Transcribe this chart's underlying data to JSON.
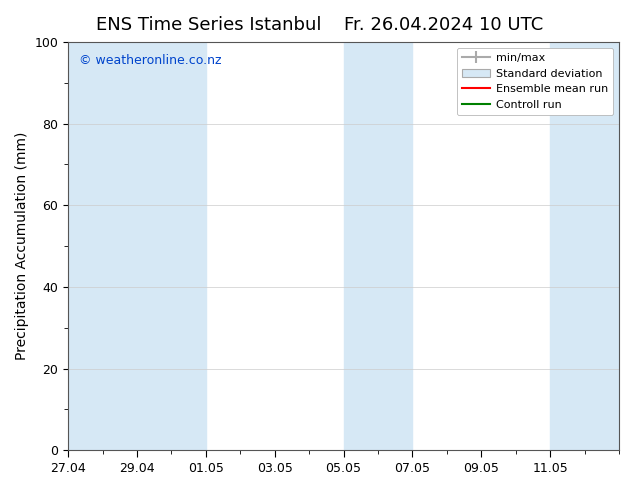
{
  "title_left": "ENS Time Series Istanbul",
  "title_right": "Fr. 26.04.2024 10 UTC",
  "ylabel": "Precipitation Accumulation (mm)",
  "ylim": [
    0,
    100
  ],
  "yticks": [
    0,
    20,
    40,
    60,
    80,
    100
  ],
  "x_tick_positions": [
    0,
    2,
    4,
    6,
    8,
    10,
    12,
    14
  ],
  "x_tick_labels": [
    "27.04",
    "29.04",
    "01.05",
    "03.05",
    "05.05",
    "07.05",
    "09.05",
    "11.05"
  ],
  "watermark": "© weatheronline.co.nz",
  "watermark_color": "#0044cc",
  "bg_color": "#ffffff",
  "shaded_band_color": "#d6e8f5",
  "legend_entries": [
    "min/max",
    "Standard deviation",
    "Ensemble mean run",
    "Controll run"
  ],
  "legend_colors": [
    "#aaaaaa",
    "#c8d8e8",
    "#ff0000",
    "#008000"
  ],
  "title_fontsize": 13,
  "axis_label_fontsize": 10,
  "tick_fontsize": 9,
  "shade_bands": [
    [
      0,
      2
    ],
    [
      2,
      4
    ],
    [
      8,
      10
    ],
    [
      14,
      16
    ]
  ],
  "xlim": [
    0,
    16
  ]
}
